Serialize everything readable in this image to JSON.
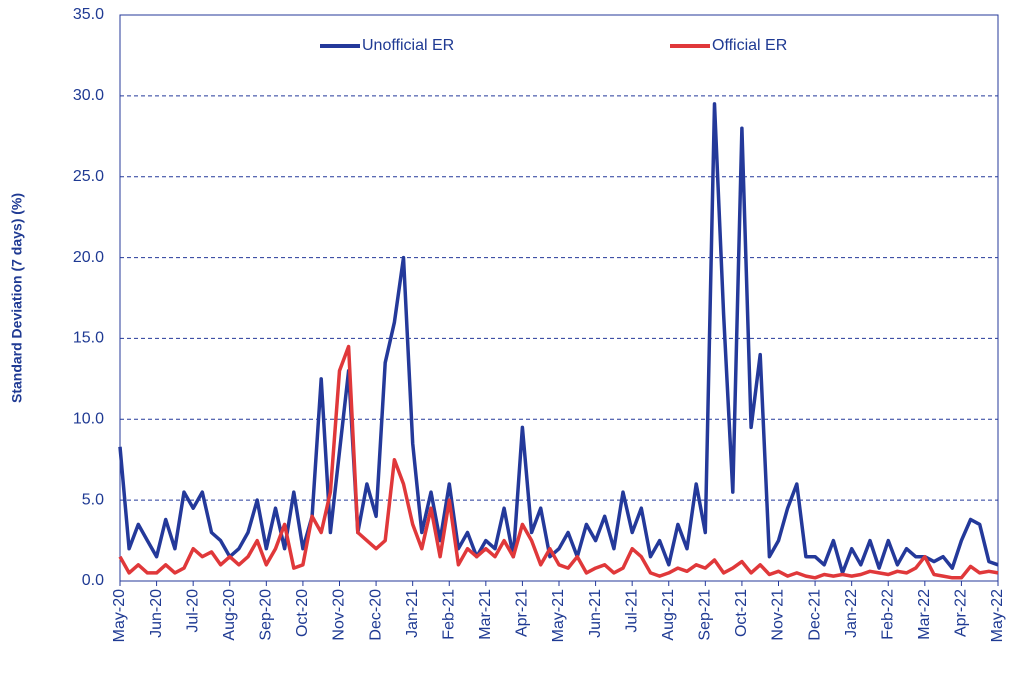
{
  "chart_data": {
    "type": "line",
    "y_label": "Standard Deviation (7 days) (%)",
    "categories": [
      "May-20",
      null,
      null,
      null,
      "Jun-20",
      null,
      null,
      null,
      "Jul-20",
      null,
      null,
      null,
      "Aug-20",
      null,
      null,
      null,
      "Sep-20",
      null,
      null,
      null,
      "Oct-20",
      null,
      null,
      null,
      "Nov-20",
      null,
      null,
      null,
      "Dec-20",
      null,
      null,
      null,
      "Jan-21",
      null,
      null,
      null,
      "Feb-21",
      null,
      null,
      null,
      "Mar-21",
      null,
      null,
      null,
      "Apr-21",
      null,
      null,
      null,
      "May-21",
      null,
      null,
      null,
      "Jun-21",
      null,
      null,
      null,
      "Jul-21",
      null,
      null,
      null,
      "Aug-21",
      null,
      null,
      null,
      "Sep-21",
      null,
      null,
      null,
      "Oct-21",
      null,
      null,
      null,
      "Nov-21",
      null,
      null,
      null,
      "Dec-21",
      null,
      null,
      null,
      "Jan-22",
      null,
      null,
      null,
      "Feb-22",
      null,
      null,
      null,
      "Mar-22",
      null,
      null,
      null,
      "Apr-22",
      null,
      null,
      null,
      "May-22"
    ],
    "series": [
      {
        "name": "Unofficial ER",
        "color": "#24399a",
        "values": [
          8.3,
          2.0,
          3.5,
          2.5,
          1.5,
          3.8,
          2.0,
          5.5,
          4.5,
          5.5,
          3.0,
          2.5,
          1.5,
          2.0,
          3.0,
          5.0,
          2.0,
          4.5,
          2.0,
          5.5,
          2.0,
          4.0,
          12.5,
          3.0,
          8.0,
          13.0,
          3.0,
          6.0,
          4.0,
          13.5,
          16.0,
          20.0,
          8.5,
          3.0,
          5.5,
          2.5,
          6.0,
          2.0,
          3.0,
          1.5,
          2.5,
          2.0,
          4.5,
          1.5,
          9.5,
          3.0,
          4.5,
          1.5,
          2.0,
          3.0,
          1.5,
          3.5,
          2.5,
          4.0,
          2.0,
          5.5,
          3.0,
          4.5,
          1.5,
          2.5,
          1.0,
          3.5,
          2.0,
          6.0,
          3.0,
          29.5,
          16.5,
          5.5,
          28.0,
          9.5,
          14.0,
          1.5,
          2.5,
          4.5,
          6.0,
          1.5,
          1.5,
          1.0,
          2.5,
          0.5,
          2.0,
          1.0,
          2.5,
          0.8,
          2.5,
          1.0,
          2.0,
          1.5,
          1.5,
          1.2,
          1.5,
          0.8,
          2.5,
          3.8,
          3.5,
          1.2,
          1.0
        ]
      },
      {
        "name": "Official ER",
        "color": "#e0383a",
        "values": [
          1.5,
          0.5,
          1.0,
          0.5,
          0.5,
          1.0,
          0.5,
          0.8,
          2.0,
          1.5,
          1.8,
          1.0,
          1.5,
          1.0,
          1.5,
          2.5,
          1.0,
          2.0,
          3.5,
          0.8,
          1.0,
          4.0,
          3.0,
          5.5,
          13.0,
          14.5,
          3.0,
          2.5,
          2.0,
          2.5,
          7.5,
          6.0,
          3.5,
          2.0,
          4.5,
          1.5,
          5.0,
          1.0,
          2.0,
          1.5,
          2.0,
          1.5,
          2.5,
          1.5,
          3.5,
          2.5,
          1.0,
          2.0,
          1.0,
          0.8,
          1.5,
          0.5,
          0.8,
          1.0,
          0.5,
          0.8,
          2.0,
          1.5,
          0.5,
          0.3,
          0.5,
          0.8,
          0.6,
          1.0,
          0.8,
          1.3,
          0.5,
          0.8,
          1.2,
          0.5,
          1.0,
          0.4,
          0.6,
          0.3,
          0.5,
          0.3,
          0.2,
          0.4,
          0.3,
          0.4,
          0.3,
          0.4,
          0.6,
          0.5,
          0.4,
          0.6,
          0.5,
          0.8,
          1.5,
          0.4,
          0.3,
          0.2,
          0.2,
          0.9,
          0.5,
          0.6,
          0.5
        ]
      }
    ],
    "ylim": [
      0,
      35
    ],
    "yticks": [
      {
        "value": 0,
        "label": "0.0"
      },
      {
        "value": 5,
        "label": "5.0"
      },
      {
        "value": 10,
        "label": "10.0"
      },
      {
        "value": 15,
        "label": "15.0"
      },
      {
        "value": 20,
        "label": "20.0"
      },
      {
        "value": 25,
        "label": "25.0"
      },
      {
        "value": 30,
        "label": "30.0"
      },
      {
        "value": 35,
        "label": "35.0"
      }
    ],
    "grid": true,
    "legend": "top"
  }
}
